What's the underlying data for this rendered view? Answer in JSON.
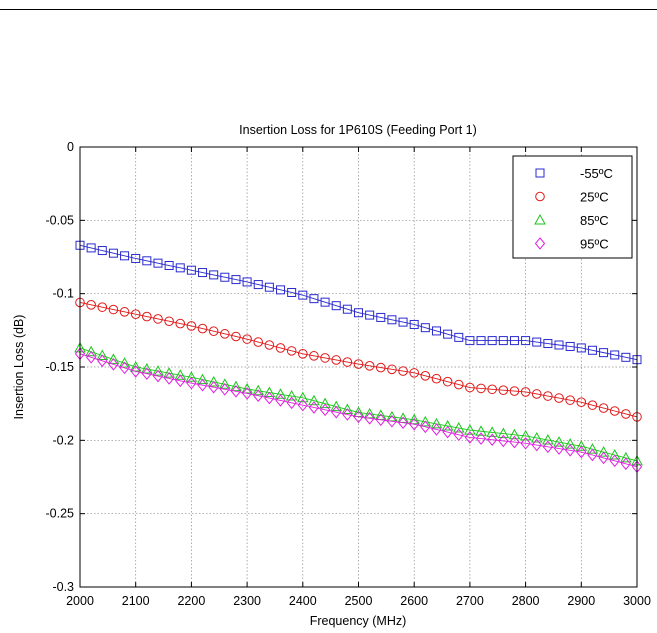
{
  "chart_data": {
    "type": "scatter",
    "title": "Insertion Loss for 1P610S (Feeding Port 1)",
    "xlabel": "Frequency (MHz)",
    "ylabel": "Insertion Loss (dB)",
    "xlim": [
      2000,
      3000
    ],
    "ylim": [
      -0.3,
      0
    ],
    "xticks": [
      "2000",
      "2100",
      "2200",
      "2300",
      "2400",
      "2500",
      "2600",
      "2700",
      "2800",
      "2900",
      "3000"
    ],
    "yticks": [
      "0",
      "-0.05",
      "-0.1",
      "-0.15",
      "-0.2",
      "-0.25",
      "-0.3"
    ],
    "grid": true,
    "legend_position": "top-right",
    "series": [
      {
        "name": "-55ºC",
        "marker": "square",
        "color": "#2a2ad0",
        "anchors": [
          [
            2000,
            -0.067
          ],
          [
            2100,
            -0.076
          ],
          [
            2200,
            -0.084
          ],
          [
            2300,
            -0.092
          ],
          [
            2400,
            -0.101
          ],
          [
            2500,
            -0.113
          ],
          [
            2600,
            -0.121
          ],
          [
            2700,
            -0.132
          ],
          [
            2800,
            -0.132
          ],
          [
            2900,
            -0.137
          ],
          [
            3000,
            -0.145
          ]
        ]
      },
      {
        "name": "25ºC",
        "marker": "circle",
        "color": "#e01818",
        "anchors": [
          [
            2000,
            -0.106
          ],
          [
            2100,
            -0.114
          ],
          [
            2200,
            -0.122
          ],
          [
            2300,
            -0.131
          ],
          [
            2400,
            -0.141
          ],
          [
            2500,
            -0.148
          ],
          [
            2600,
            -0.154
          ],
          [
            2700,
            -0.164
          ],
          [
            2800,
            -0.167
          ],
          [
            2900,
            -0.174
          ],
          [
            3000,
            -0.184
          ]
        ]
      },
      {
        "name": "85ºC",
        "marker": "triangle",
        "color": "#19c619",
        "anchors": [
          [
            2000,
            -0.137
          ],
          [
            2100,
            -0.15
          ],
          [
            2200,
            -0.157
          ],
          [
            2300,
            -0.165
          ],
          [
            2400,
            -0.171
          ],
          [
            2500,
            -0.181
          ],
          [
            2600,
            -0.186
          ],
          [
            2700,
            -0.193
          ],
          [
            2800,
            -0.197
          ],
          [
            2900,
            -0.204
          ],
          [
            3000,
            -0.214
          ]
        ]
      },
      {
        "name": "95ºC",
        "marker": "diamond",
        "color": "#e020e0",
        "anchors": [
          [
            2000,
            -0.141
          ],
          [
            2100,
            -0.153
          ],
          [
            2200,
            -0.161
          ],
          [
            2300,
            -0.168
          ],
          [
            2400,
            -0.176
          ],
          [
            2500,
            -0.184
          ],
          [
            2600,
            -0.189
          ],
          [
            2700,
            -0.198
          ],
          [
            2800,
            -0.202
          ],
          [
            2900,
            -0.208
          ],
          [
            3000,
            -0.218
          ]
        ]
      }
    ]
  }
}
